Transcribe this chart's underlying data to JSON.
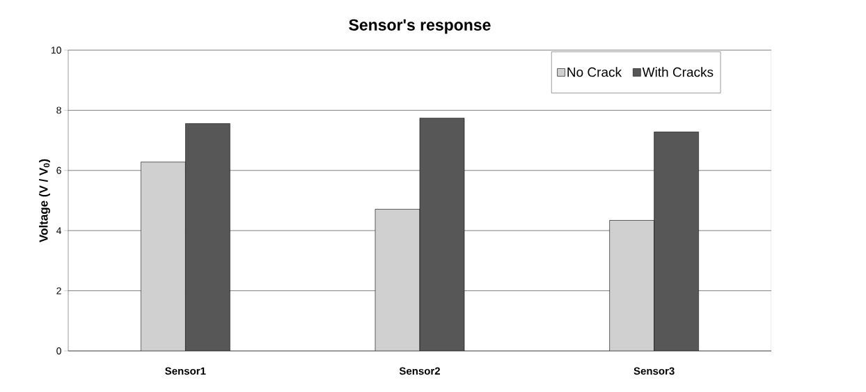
{
  "chart_data": {
    "type": "bar",
    "title": "Sensor's response",
    "ylabel": "Voltage (V / V$_{0}$)",
    "categories": [
      "Sensor1",
      "Sensor2",
      "Sensor3"
    ],
    "series": [
      {
        "name": "No Crack",
        "color": "#d0d0d0",
        "values": [
          6.28,
          4.71,
          4.34
        ]
      },
      {
        "name": "With Cracks",
        "color": "#575757",
        "values": [
          7.56,
          7.74,
          7.28
        ]
      }
    ],
    "ylim": [
      0,
      10
    ],
    "yticks": [
      0,
      2,
      4,
      6,
      8,
      10
    ],
    "grid": "y",
    "legend": "top right"
  }
}
